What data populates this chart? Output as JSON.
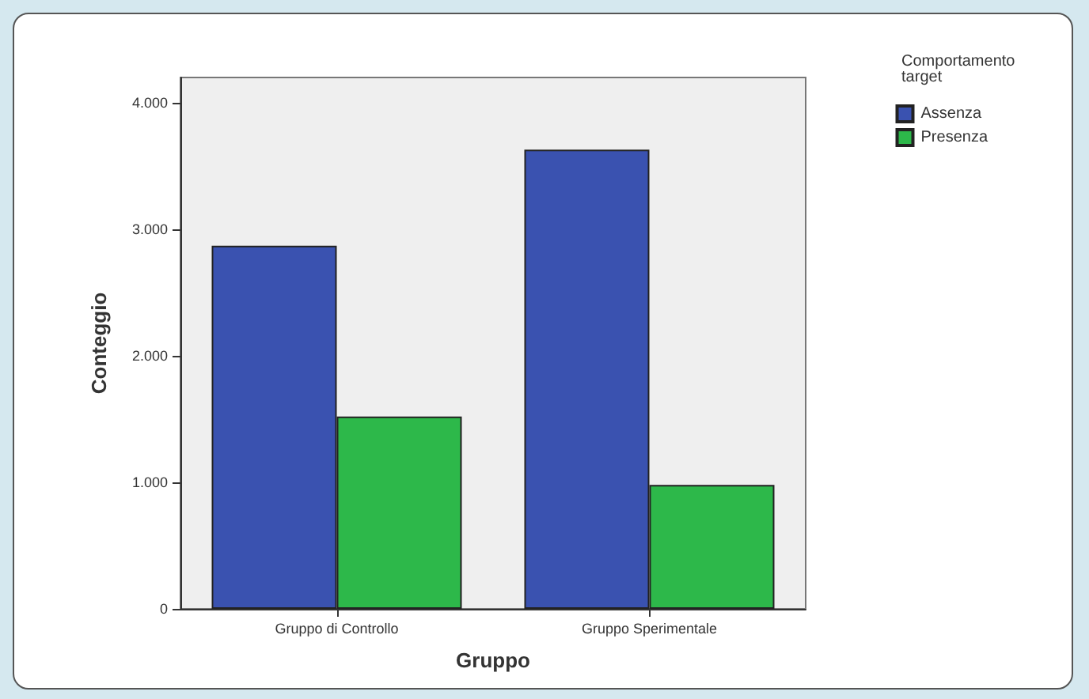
{
  "chart_data": {
    "type": "bar",
    "xlabel": "Gruppo",
    "ylabel": "Conteggio",
    "legend_title": "Comportamento target",
    "categories": [
      "Gruppo di Controllo",
      "Gruppo Sperimentale"
    ],
    "series": [
      {
        "name": "Assenza",
        "color": "#3a52b0",
        "values": [
          2870,
          3630
        ]
      },
      {
        "name": "Presenza",
        "color": "#2db84a",
        "values": [
          1520,
          980
        ]
      }
    ],
    "ylim": [
      0,
      4200
    ],
    "yticks": [
      {
        "value": 0,
        "label": "0"
      },
      {
        "value": 1000,
        "label": "1.000"
      },
      {
        "value": 2000,
        "label": "2.000"
      },
      {
        "value": 3000,
        "label": "3.000"
      },
      {
        "value": 4000,
        "label": "4.000"
      }
    ],
    "grid": false,
    "legend": "top right"
  }
}
